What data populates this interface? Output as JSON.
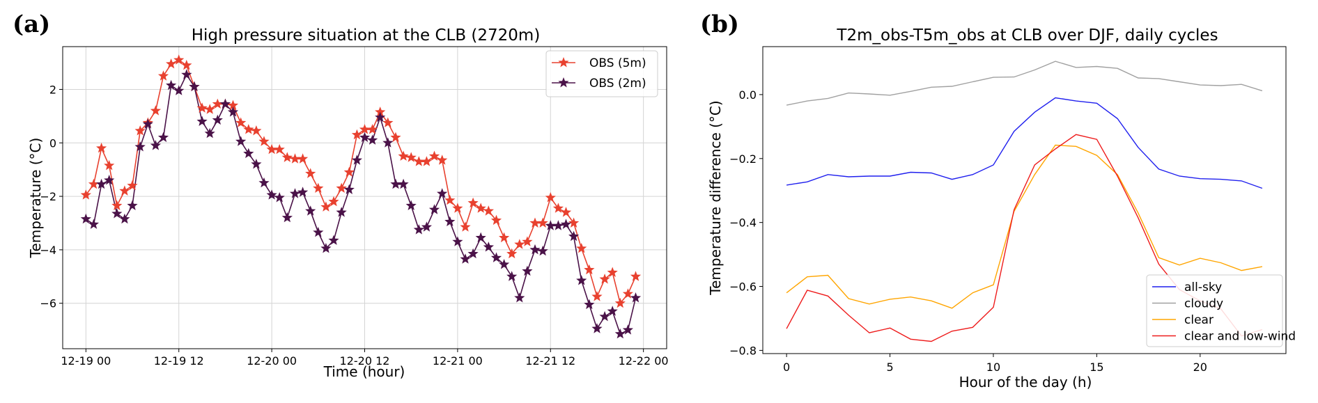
{
  "chart_data": [
    {
      "panel": "(a)",
      "type": "line",
      "title": "High pressure situation at the CLB (2720m)",
      "xlabel": "Time (hour)",
      "ylabel": "Temperature (°C)",
      "xlim": [
        -3,
        75
      ],
      "ylim": [
        -7.7,
        3.6
      ],
      "grid": true,
      "legend": "top-right",
      "x_ticks": [
        0,
        12,
        24,
        36,
        48,
        60,
        72
      ],
      "x_tick_labels": [
        "12-19 00",
        "12-19 12",
        "12-20 00",
        "12-20 12",
        "12-21 00",
        "12-21 12",
        "12-22 00"
      ],
      "y_ticks": [
        2,
        0,
        -2,
        -4,
        -6
      ],
      "y_tick_labels": [
        "2",
        "0",
        "−2",
        "−4",
        "−6"
      ],
      "series": [
        {
          "name": "OBS (5m)",
          "color": "#e8412f",
          "marker": "star",
          "values": [
            -1.95,
            -1.55,
            -0.2,
            -0.85,
            -2.35,
            -1.8,
            -1.6,
            0.45,
            0.75,
            1.2,
            2.5,
            2.95,
            3.1,
            2.9,
            2.1,
            1.3,
            1.25,
            1.45,
            1.45,
            1.4,
            0.75,
            0.5,
            0.45,
            0.05,
            -0.25,
            -0.25,
            -0.55,
            -0.6,
            -0.6,
            -1.15,
            -1.7,
            -2.4,
            -2.2,
            -1.7,
            -1.1,
            0.3,
            0.5,
            0.5,
            1.15,
            0.75,
            0.2,
            -0.5,
            -0.55,
            -0.7,
            -0.7,
            -0.5,
            -0.65,
            -2.15,
            -2.45,
            -3.15,
            -2.25,
            -2.45,
            -2.55,
            -2.9,
            -3.55,
            -4.15,
            -3.8,
            -3.7,
            -3.0,
            -3.0,
            -2.05,
            -2.45,
            -2.6,
            -3.0,
            -3.95,
            -4.75,
            -5.75,
            -5.1,
            -4.85,
            -6.0,
            -5.65,
            -5.0
          ]
        },
        {
          "name": "OBS (2m)",
          "color": "#4a1248",
          "marker": "star",
          "values": [
            -2.85,
            -3.05,
            -1.55,
            -1.4,
            -2.65,
            -2.85,
            -2.35,
            -0.15,
            0.7,
            -0.1,
            0.2,
            2.15,
            1.95,
            2.55,
            2.1,
            0.8,
            0.35,
            0.85,
            1.45,
            1.15,
            0.05,
            -0.4,
            -0.8,
            -1.5,
            -1.95,
            -2.05,
            -2.8,
            -1.9,
            -1.85,
            -2.55,
            -3.35,
            -3.95,
            -3.65,
            -2.6,
            -1.75,
            -0.65,
            0.2,
            0.1,
            0.95,
            0.0,
            -1.55,
            -1.55,
            -2.35,
            -3.25,
            -3.15,
            -2.5,
            -1.9,
            -2.95,
            -3.7,
            -4.35,
            -4.15,
            -3.55,
            -3.9,
            -4.3,
            -4.55,
            -5.0,
            -5.8,
            -4.8,
            -4.0,
            -4.05,
            -3.1,
            -3.1,
            -3.05,
            -3.5,
            -5.15,
            -6.05,
            -6.95,
            -6.5,
            -6.3,
            -7.15,
            -7.0,
            -5.8
          ]
        }
      ]
    },
    {
      "panel": "(b)",
      "type": "line",
      "title": "T2m_obs-T5m_obs at CLB over DJF, daily cycles",
      "xlabel": "Hour of the day (h)",
      "ylabel": "Temperature difference (°C)",
      "xlim": [
        -1.15,
        24.15
      ],
      "ylim": [
        -0.81,
        0.15
      ],
      "grid": false,
      "legend": "bottom-right",
      "x_ticks": [
        0,
        5,
        10,
        15,
        20
      ],
      "x_tick_labels": [
        "0",
        "5",
        "10",
        "15",
        "20"
      ],
      "y_ticks": [
        0.0,
        -0.2,
        -0.4,
        -0.6,
        -0.8
      ],
      "y_tick_labels": [
        "0.0",
        "−0.2",
        "−0.4",
        "−0.6",
        "−0.8"
      ],
      "x": [
        0,
        1,
        2,
        3,
        4,
        5,
        6,
        7,
        8,
        9,
        10,
        11,
        12,
        13,
        14,
        15,
        16,
        17,
        18,
        19,
        20,
        21,
        22,
        23
      ],
      "series": [
        {
          "name": "all-sky",
          "color": "#1f1fee",
          "values": [
            -0.283,
            -0.273,
            -0.25,
            -0.257,
            -0.255,
            -0.255,
            -0.243,
            -0.245,
            -0.265,
            -0.25,
            -0.22,
            -0.115,
            -0.055,
            -0.01,
            -0.02,
            -0.027,
            -0.075,
            -0.165,
            -0.233,
            -0.255,
            -0.263,
            -0.265,
            -0.27,
            -0.293
          ]
        },
        {
          "name": "cloudy",
          "color": "#a0a0a0",
          "values": [
            -0.033,
            -0.02,
            -0.012,
            0.005,
            0.002,
            -0.002,
            0.01,
            0.023,
            0.026,
            0.04,
            0.054,
            0.055,
            0.077,
            0.104,
            0.085,
            0.088,
            0.082,
            0.052,
            0.05,
            0.04,
            0.03,
            0.028,
            0.032,
            0.012
          ]
        },
        {
          "name": "clear",
          "color": "#ffa500",
          "values": [
            -0.62,
            -0.57,
            -0.565,
            -0.638,
            -0.655,
            -0.64,
            -0.633,
            -0.645,
            -0.668,
            -0.62,
            -0.595,
            -0.365,
            -0.25,
            -0.158,
            -0.162,
            -0.19,
            -0.25,
            -0.37,
            -0.51,
            -0.533,
            -0.512,
            -0.526,
            -0.55,
            -0.538
          ]
        },
        {
          "name": "clear and low-wind",
          "color": "#ee1c1c",
          "values": [
            -0.732,
            -0.612,
            -0.63,
            -0.69,
            -0.745,
            -0.73,
            -0.765,
            -0.772,
            -0.74,
            -0.728,
            -0.665,
            -0.36,
            -0.22,
            -0.17,
            -0.125,
            -0.14,
            -0.255,
            -0.385,
            -0.53,
            -0.61,
            -0.645,
            -0.67,
            -0.755,
            -0.735
          ]
        }
      ]
    }
  ]
}
